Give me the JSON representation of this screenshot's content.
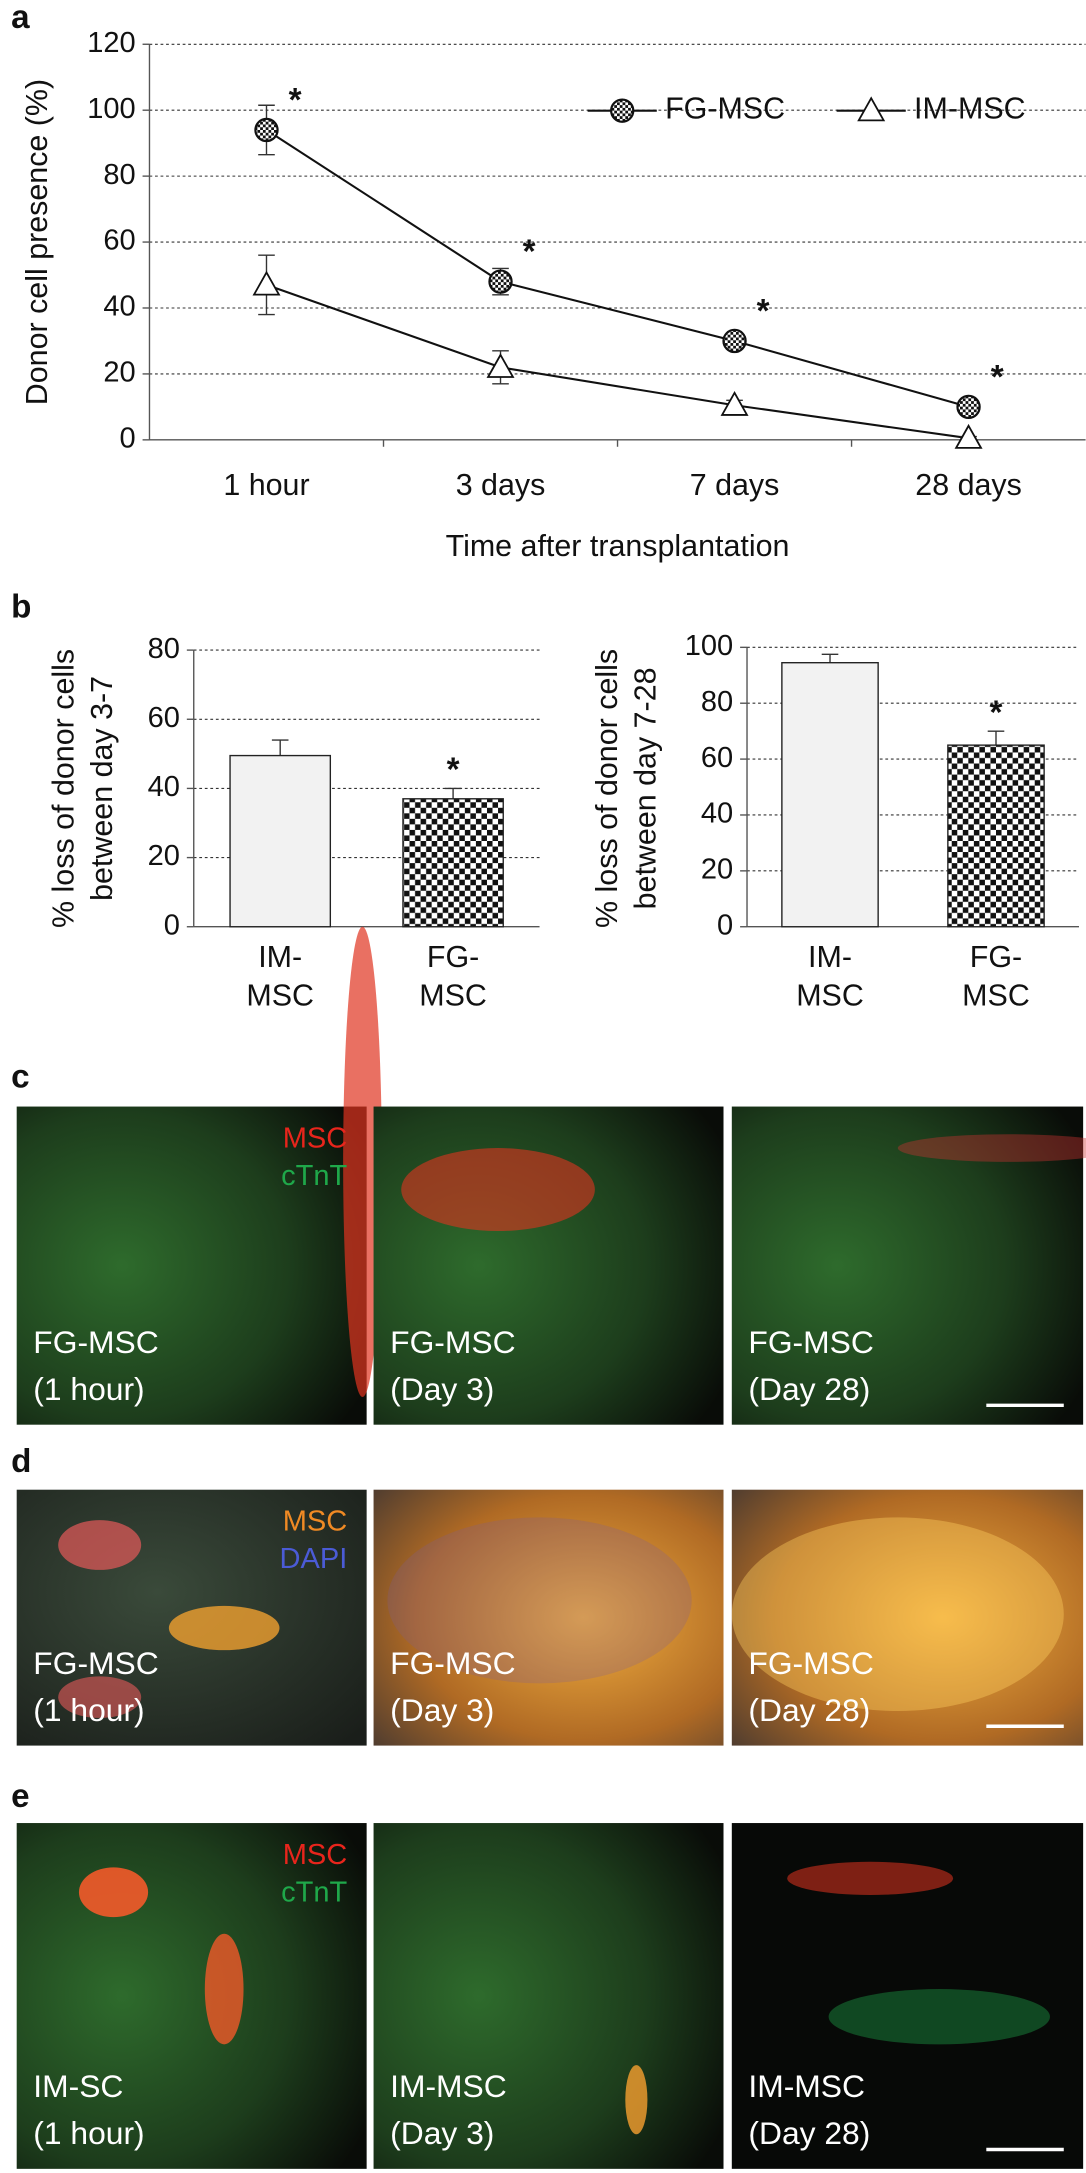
{
  "panel_labels": [
    "a",
    "b",
    "c",
    "d",
    "e"
  ],
  "chart_data": [
    {
      "type": "line",
      "x_label": "Time after transplantation",
      "y_label": "Donor cell presence (%)",
      "categories": [
        "1 hour",
        "3 days",
        "7 days",
        "28 days"
      ],
      "ylim": [
        0,
        120
      ],
      "yticks": [
        0,
        20,
        40,
        60,
        80,
        100,
        120
      ],
      "grid": true,
      "legend": "upper right",
      "series": [
        {
          "name": "FG-MSC",
          "color": "#111111",
          "marker": "checker-circle",
          "values": [
            94,
            48,
            30,
            10
          ],
          "errors": [
            7.5,
            4,
            2,
            1.5
          ],
          "significance_labels": [
            "*",
            "*",
            "*",
            "*"
          ]
        },
        {
          "name": "IM-MSC",
          "color": "#111111",
          "marker": "triangle",
          "values": [
            47,
            22,
            10.5,
            0.5
          ],
          "errors": [
            9,
            5,
            1.5,
            0.5
          ]
        }
      ]
    },
    {
      "type": "bar",
      "y_label": "% loss of donor cells between day 3-7",
      "categories": [
        "IM-MSC",
        "FG-MSC"
      ],
      "values": [
        49.5,
        37
      ],
      "errors": [
        4.5,
        3
      ],
      "colors": [
        "#f2f2f2",
        "checkerboard"
      ],
      "significance_labels": [
        null,
        "*"
      ],
      "ylim": [
        0,
        80
      ],
      "yticks": [
        0,
        20,
        40,
        60,
        80
      ],
      "grid": true
    },
    {
      "type": "bar",
      "y_label": "% loss of donor cells between day 7-28",
      "categories": [
        "IM-MSC",
        "FG-MSC"
      ],
      "values": [
        94.5,
        65
      ],
      "errors": [
        3,
        5
      ],
      "colors": [
        "#f2f2f2",
        "checkerboard"
      ],
      "significance_labels": [
        null,
        "*"
      ],
      "ylim": [
        0,
        100
      ],
      "yticks": [
        0,
        20,
        40,
        60,
        80,
        100
      ],
      "grid": true
    }
  ],
  "image_panels": [
    {
      "stains": [
        {
          "name": "MSC",
          "color": "#e8251c"
        },
        {
          "name": "cTnT",
          "color": "#1fa84a"
        }
      ],
      "images": [
        {
          "label": "FG-MSC",
          "time": "(1 hour)"
        },
        {
          "label": "FG-MSC",
          "time": "(Day 3)"
        },
        {
          "label": "FG-MSC",
          "time": "(Day 28)"
        }
      ]
    },
    {
      "stains": [
        {
          "name": "MSC",
          "color": "#f08a24"
        },
        {
          "name": "DAPI",
          "color": "#4b5bd6"
        }
      ],
      "images": [
        {
          "label": "FG-MSC",
          "time": "(1 hour)"
        },
        {
          "label": "FG-MSC",
          "time": "(Day 3)"
        },
        {
          "label": "FG-MSC",
          "time": "(Day 28)"
        }
      ]
    },
    {
      "stains": [
        {
          "name": "MSC",
          "color": "#e8251c"
        },
        {
          "name": "cTnT",
          "color": "#1fa84a"
        }
      ],
      "images": [
        {
          "label": "IM-SC",
          "time": "(1 hour)"
        },
        {
          "label": "IM-MSC",
          "time": "(Day 3)"
        },
        {
          "label": "IM-MSC",
          "time": "(Day 28)"
        }
      ]
    }
  ]
}
